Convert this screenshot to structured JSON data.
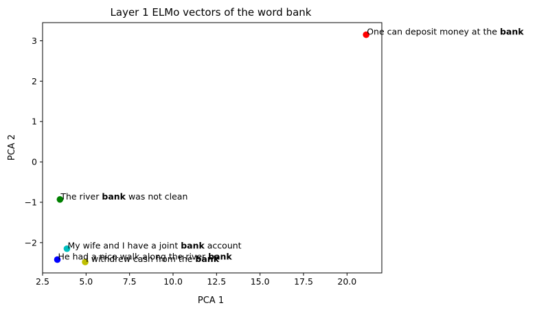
{
  "chart_data": {
    "type": "scatter",
    "title": "Layer 1 ELMo vectors of the word bank",
    "xlabel": "PCA 1",
    "ylabel": "PCA 2",
    "xlim": [
      2.5,
      22.0
    ],
    "ylim": [
      -2.75,
      3.45
    ],
    "xticks": [
      2.5,
      5.0,
      7.5,
      10.0,
      12.5,
      15.0,
      17.5,
      20.0
    ],
    "xtick_labels": [
      "2.5",
      "5.0",
      "7.5",
      "10.0",
      "12.5",
      "15.0",
      "17.5",
      "20.0"
    ],
    "yticks": [
      -2,
      -1,
      0,
      1,
      2,
      3
    ],
    "ytick_labels": [
      "−2",
      "−1",
      "0",
      "1",
      "2",
      "3"
    ],
    "grid": false,
    "points": [
      {
        "x": 21.1,
        "y": 3.15,
        "color": "#ff0000",
        "label": [
          {
            "text": "One can deposit money at the ",
            "bold": false
          },
          {
            "text": "bank",
            "bold": true
          }
        ]
      },
      {
        "x": 3.5,
        "y": -0.93,
        "color": "#008000",
        "label": [
          {
            "text": "The river ",
            "bold": false
          },
          {
            "text": "bank",
            "bold": true
          },
          {
            "text": " was not clean",
            "bold": false
          }
        ]
      },
      {
        "x": 3.9,
        "y": -2.15,
        "color": "#00bfbf",
        "label": [
          {
            "text": "My wife and I have a joint ",
            "bold": false
          },
          {
            "text": "bank",
            "bold": true
          },
          {
            "text": " account",
            "bold": false
          }
        ]
      },
      {
        "x": 3.35,
        "y": -2.42,
        "color": "#0000ff",
        "label": [
          {
            "text": "He had a nice walk along the river ",
            "bold": false
          },
          {
            "text": "bank",
            "bold": true
          }
        ]
      },
      {
        "x": 4.95,
        "y": -2.48,
        "color": "#bfbf00",
        "label": [
          {
            "text": "I withdrew cash from the ",
            "bold": false
          },
          {
            "text": "bank",
            "bold": true
          }
        ]
      }
    ]
  }
}
